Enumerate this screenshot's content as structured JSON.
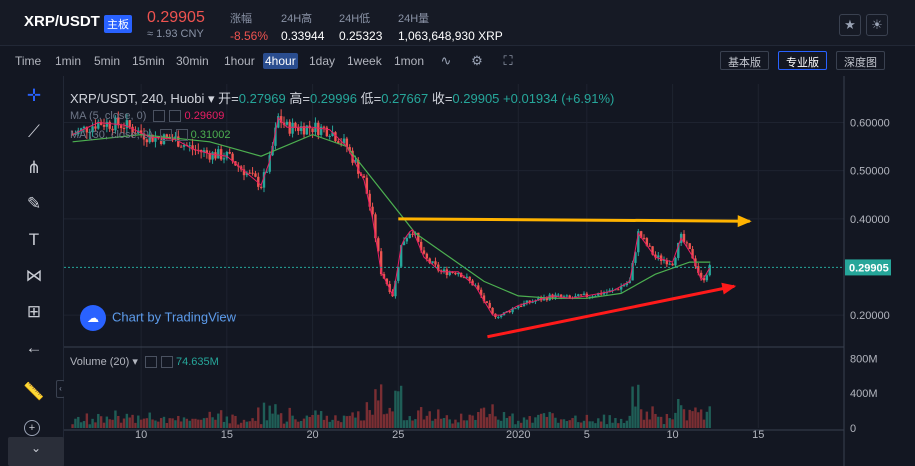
{
  "header": {
    "pair": "XRP/USDT",
    "board_badge": "主板",
    "price": "0.29905",
    "cny": "≈ 1.93 CNY",
    "stats": [
      {
        "label": "涨幅",
        "value": "-8.56%",
        "color": "#ef5350"
      },
      {
        "label": "24H高",
        "value": "0.33944",
        "color": "#ffffff"
      },
      {
        "label": "24H低",
        "value": "0.25323",
        "color": "#ffffff"
      },
      {
        "label": "24H量",
        "value": "1,063,648,930 XRP",
        "color": "#ffffff"
      }
    ],
    "icons": [
      "star-icon",
      "theme-toggle-icon"
    ]
  },
  "toolbar": {
    "timeframes": [
      "Time",
      "1min",
      "5min",
      "15min",
      "30min",
      "1hour",
      "4hour",
      "1day",
      "1week",
      "1mon"
    ],
    "active_timeframe": "4hour",
    "icons": [
      "indicator-icon",
      "settings-icon",
      "fullscreen-icon"
    ],
    "view_buttons": [
      "基本版",
      "专业版",
      "深度图"
    ],
    "active_view": "专业版"
  },
  "left_tools": [
    "crosshair-icon",
    "trend-line-icon",
    "pitchfork-icon",
    "brush-icon",
    "text-icon",
    "pattern-icon",
    "measure-icon",
    "back-arrow-icon",
    "ruler-icon"
  ],
  "legend": {
    "title": "XRP/USDT, 240, Huobi",
    "open_label": "开=",
    "open": "0.27969",
    "high_label": "高=",
    "high": "0.29996",
    "low_label": "低=",
    "low": "0.27667",
    "close_label": "收=",
    "close": "0.29905",
    "change": "+0.01934 (+6.91%)"
  },
  "indicators": [
    {
      "label": "MA (5, close, 0)",
      "value": "0.29609",
      "color": "#e91e63"
    },
    {
      "label": "MA (30, close, 0)",
      "value": "0.31002",
      "color": "#4caf50"
    },
    {
      "label": "Volume (20)",
      "value": "74.635M",
      "color": "#26a69a"
    }
  ],
  "watermark": "Chart by TradingView",
  "colors": {
    "up": "#26a69a",
    "down": "#ef5350",
    "ma5": "#e91e63",
    "ma30": "#4caf50",
    "arrow_top": "#ffb300",
    "arrow_bottom": "#ff1a1a",
    "last_price_bg": "#26a69a"
  },
  "chart_data": {
    "type": "candlestick",
    "price_axis": {
      "ticks": [
        "0.60000",
        "0.50000",
        "0.40000",
        "0.20000"
      ],
      "tick_values": [
        0.6,
        0.5,
        0.4,
        0.2
      ],
      "range": [
        0.14,
        0.68
      ]
    },
    "volume_axis": {
      "ticks": [
        "800M",
        "400M",
        "0"
      ],
      "tick_values": [
        800,
        400,
        0
      ],
      "range": [
        0,
        850
      ]
    },
    "last_price": "0.29905",
    "last_price_value": 0.29905,
    "x_axis": {
      "labels": [
        "10",
        "15",
        "20",
        "25",
        "2020",
        "5",
        "10",
        "15"
      ],
      "label_days": [
        10,
        15,
        20,
        25,
        32,
        36,
        41,
        46
      ]
    },
    "day_range": [
      5.5,
      51
    ],
    "price_path": [
      [
        6,
        0.575
      ],
      [
        7.5,
        0.6
      ],
      [
        9,
        0.595
      ],
      [
        10.5,
        0.57
      ],
      [
        12,
        0.565
      ],
      [
        13,
        0.545
      ],
      [
        14,
        0.535
      ],
      [
        15,
        0.53
      ],
      [
        16,
        0.5
      ],
      [
        17,
        0.47
      ],
      [
        17.5,
        0.52
      ],
      [
        18,
        0.61
      ],
      [
        18.5,
        0.59
      ],
      [
        20,
        0.59
      ],
      [
        21,
        0.585
      ],
      [
        22,
        0.55
      ],
      [
        23,
        0.48
      ],
      [
        23.5,
        0.4
      ],
      [
        24,
        0.29
      ],
      [
        24.7,
        0.24
      ],
      [
        25.2,
        0.35
      ],
      [
        25.8,
        0.38
      ],
      [
        26.5,
        0.32
      ],
      [
        27.5,
        0.29
      ],
      [
        28.5,
        0.29
      ],
      [
        29.5,
        0.26
      ],
      [
        30.5,
        0.2
      ],
      [
        31,
        0.2
      ],
      [
        32,
        0.22
      ],
      [
        33,
        0.23
      ],
      [
        34,
        0.24
      ],
      [
        35,
        0.235
      ],
      [
        36,
        0.24
      ],
      [
        37.5,
        0.25
      ],
      [
        38.5,
        0.27
      ],
      [
        39,
        0.37
      ],
      [
        40,
        0.32
      ],
      [
        41,
        0.31
      ],
      [
        41.5,
        0.36
      ],
      [
        42.2,
        0.32
      ],
      [
        42.7,
        0.27
      ],
      [
        43.2,
        0.3
      ]
    ],
    "ma30_path": [
      [
        6,
        0.56
      ],
      [
        10,
        0.575
      ],
      [
        14,
        0.56
      ],
      [
        17,
        0.53
      ],
      [
        20,
        0.575
      ],
      [
        22,
        0.55
      ],
      [
        24,
        0.46
      ],
      [
        26,
        0.37
      ],
      [
        28,
        0.32
      ],
      [
        30,
        0.27
      ],
      [
        32,
        0.24
      ],
      [
        34,
        0.235
      ],
      [
        36,
        0.235
      ],
      [
        38,
        0.245
      ],
      [
        40,
        0.285
      ],
      [
        42,
        0.31
      ],
      [
        43.2,
        0.31
      ]
    ],
    "annotations": [
      {
        "type": "arrow",
        "color": "#ffb300",
        "from": [
          25,
          0.4
        ],
        "to": [
          45.5,
          0.395
        ]
      },
      {
        "type": "arrow",
        "color": "#ff1a1a",
        "from": [
          30.2,
          0.155
        ],
        "to": [
          44.6,
          0.26
        ]
      }
    ]
  }
}
